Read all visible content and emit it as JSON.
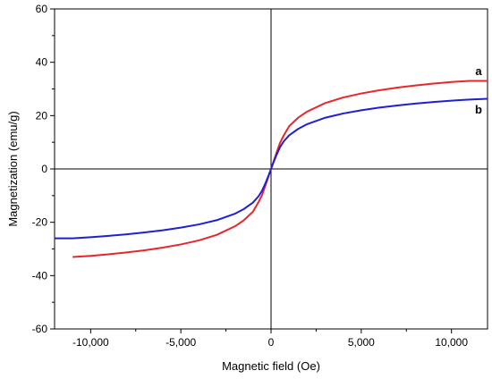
{
  "chart_data": {
    "type": "line",
    "xlabel": "Magnetic field (Oe)",
    "ylabel": "Magnetization (emu/g)",
    "xlim": [
      -12000,
      12000
    ],
    "ylim": [
      -60,
      60
    ],
    "x_ticks": [
      -10000,
      -5000,
      0,
      5000,
      10000
    ],
    "x_tick_labels": [
      "-10,000",
      "-5,000",
      "0",
      "5,000",
      "10,000"
    ],
    "y_ticks": [
      -60,
      -40,
      -20,
      0,
      20,
      40,
      60
    ],
    "y_tick_labels": [
      "-60",
      "-40",
      "-20",
      "0",
      "20",
      "40",
      "60"
    ],
    "grid": false,
    "zero_lines": true,
    "series": [
      {
        "name": "a",
        "color": "#e8262b",
        "points": [
          [
            -11000,
            -33.0
          ],
          [
            -10000,
            -32.6
          ],
          [
            -9000,
            -32.0
          ],
          [
            -8000,
            -31.3
          ],
          [
            -7000,
            -30.5
          ],
          [
            -6000,
            -29.5
          ],
          [
            -5000,
            -28.3
          ],
          [
            -4000,
            -26.8
          ],
          [
            -3000,
            -24.7
          ],
          [
            -2000,
            -21.5
          ],
          [
            -1500,
            -19.2
          ],
          [
            -1000,
            -16.0
          ],
          [
            -700,
            -12.5
          ],
          [
            -500,
            -9.8
          ],
          [
            -300,
            -6.0
          ],
          [
            -150,
            -3.0
          ],
          [
            0,
            0.0
          ],
          [
            150,
            3.0
          ],
          [
            300,
            6.0
          ],
          [
            500,
            9.8
          ],
          [
            700,
            12.5
          ],
          [
            1000,
            16.0
          ],
          [
            1500,
            19.2
          ],
          [
            2000,
            21.5
          ],
          [
            3000,
            24.7
          ],
          [
            4000,
            26.8
          ],
          [
            5000,
            28.3
          ],
          [
            6000,
            29.5
          ],
          [
            7000,
            30.5
          ],
          [
            8000,
            31.3
          ],
          [
            9000,
            32.0
          ],
          [
            10000,
            32.6
          ],
          [
            11000,
            33.0
          ],
          [
            12000,
            33.0
          ]
        ]
      },
      {
        "name": "b",
        "color": "#1f1fd6",
        "points": [
          [
            -12000,
            -26.0
          ],
          [
            -11000,
            -26.0
          ],
          [
            -10000,
            -25.6
          ],
          [
            -9000,
            -25.1
          ],
          [
            -8000,
            -24.5
          ],
          [
            -7000,
            -23.8
          ],
          [
            -6000,
            -23.0
          ],
          [
            -5000,
            -22.0
          ],
          [
            -4000,
            -20.8
          ],
          [
            -3000,
            -19.2
          ],
          [
            -2000,
            -16.8
          ],
          [
            -1500,
            -15.0
          ],
          [
            -1000,
            -12.6
          ],
          [
            -700,
            -10.3
          ],
          [
            -500,
            -8.2
          ],
          [
            -300,
            -5.2
          ],
          [
            -150,
            -2.7
          ],
          [
            0,
            0.0
          ],
          [
            150,
            2.7
          ],
          [
            300,
            5.2
          ],
          [
            500,
            8.2
          ],
          [
            700,
            10.3
          ],
          [
            1000,
            12.6
          ],
          [
            1500,
            15.0
          ],
          [
            2000,
            16.8
          ],
          [
            3000,
            19.2
          ],
          [
            4000,
            20.8
          ],
          [
            5000,
            22.0
          ],
          [
            6000,
            23.0
          ],
          [
            7000,
            23.8
          ],
          [
            8000,
            24.5
          ],
          [
            9000,
            25.1
          ],
          [
            10000,
            25.6
          ],
          [
            11000,
            26.0
          ],
          [
            12000,
            26.3
          ]
        ]
      }
    ]
  }
}
